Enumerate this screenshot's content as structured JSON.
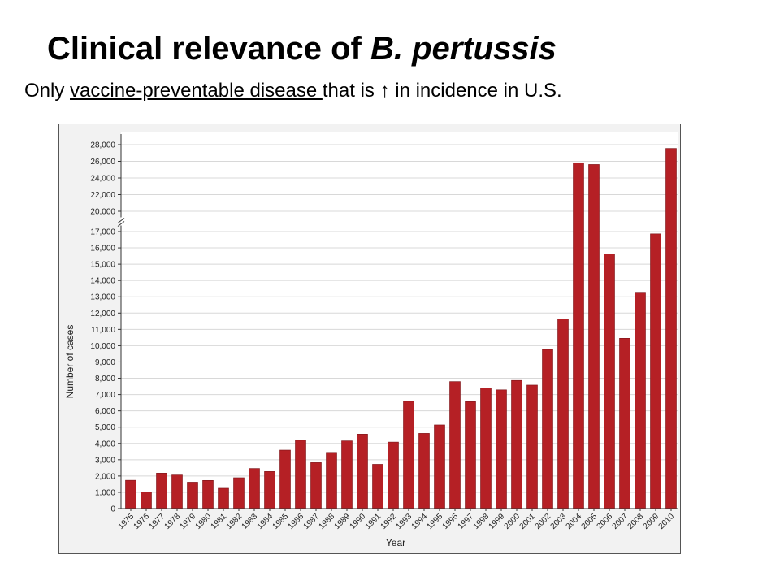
{
  "slide": {
    "title_main": "Clinical relevance of ",
    "title_italic": "B. pertussis",
    "subtitle_pre": "Only ",
    "subtitle_underlined": "vaccine-preventable disease ",
    "subtitle_post": "that is ↑ in incidence in U.S."
  },
  "chart_data": {
    "type": "bar",
    "title": "",
    "xlabel": "Year",
    "ylabel": "Number of cases",
    "ylim": [
      0,
      28000
    ],
    "y_axis_break": [
      17000,
      20000
    ],
    "yticks": [
      0,
      1000,
      2000,
      3000,
      4000,
      5000,
      6000,
      7000,
      8000,
      9000,
      10000,
      11000,
      12000,
      13000,
      14000,
      15000,
      16000,
      17000,
      20000,
      22000,
      24000,
      26000,
      28000
    ],
    "ytick_labels": [
      "0",
      "1,000",
      "2,000",
      "3,000",
      "4,000",
      "5,000",
      "6,000",
      "7,000",
      "8,000",
      "9,000",
      "10,000",
      "11,000",
      "12,000",
      "13,000",
      "14,000",
      "15,000",
      "16,000",
      "17,000",
      "20,000",
      "22,000",
      "24,000",
      "26,000",
      "28,000"
    ],
    "grid": true,
    "bar_color": "#b52025",
    "categories": [
      "1975",
      "1976",
      "1977",
      "1978",
      "1979",
      "1980",
      "1981",
      "1982",
      "1983",
      "1984",
      "1985",
      "1986",
      "1987",
      "1988",
      "1989",
      "1990",
      "1991",
      "1992",
      "1993",
      "1994",
      "1995",
      "1996",
      "1997",
      "1998",
      "1999",
      "2000",
      "2001",
      "2002",
      "2003",
      "2004",
      "2005",
      "2006",
      "2007",
      "2008",
      "2009",
      "2010"
    ],
    "values": [
      1738,
      1010,
      2177,
      2063,
      1623,
      1730,
      1248,
      1895,
      2463,
      2276,
      3589,
      4195,
      2823,
      3450,
      4157,
      4570,
      2719,
      4083,
      6586,
      4617,
      5137,
      7796,
      6564,
      7405,
      7288,
      7867,
      7580,
      9771,
      11647,
      25827,
      25616,
      15632,
      10454,
      13278,
      16858,
      27550
    ]
  }
}
